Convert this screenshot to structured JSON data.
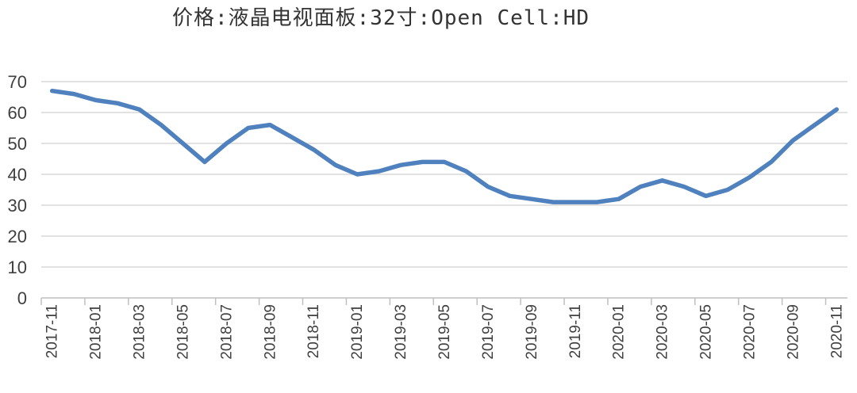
{
  "chart_data": {
    "type": "line",
    "title": "价格:液晶电视面板:32寸:Open Cell:HD",
    "xlabel": "",
    "ylabel": "",
    "ylim": [
      0,
      70
    ],
    "yticks": [
      0,
      10,
      20,
      30,
      40,
      50,
      60,
      70
    ],
    "grid": "horizontal",
    "legend": "none",
    "colors": {
      "line": "#4e81bd",
      "grid": "#d9d9d9",
      "axis": "#bfbfbf"
    },
    "x": [
      "2017-11",
      "2017-12",
      "2018-01",
      "2018-02",
      "2018-03",
      "2018-04",
      "2018-05",
      "2018-06",
      "2018-07",
      "2018-08",
      "2018-09",
      "2018-10",
      "2018-11",
      "2018-12",
      "2019-01",
      "2019-02",
      "2019-03",
      "2019-04",
      "2019-05",
      "2019-06",
      "2019-07",
      "2019-08",
      "2019-09",
      "2019-10",
      "2019-11",
      "2019-12",
      "2020-01",
      "2020-02",
      "2020-03",
      "2020-04",
      "2020-05",
      "2020-06",
      "2020-07",
      "2020-08",
      "2020-09",
      "2020-10",
      "2020-11"
    ],
    "xtick_labels": [
      "2017-11",
      "2018-01",
      "2018-03",
      "2018-05",
      "2018-07",
      "2018-09",
      "2018-11",
      "2019-01",
      "2019-03",
      "2019-05",
      "2019-07",
      "2019-09",
      "2019-11",
      "2020-01",
      "2020-03",
      "2020-05",
      "2020-07",
      "2020-09",
      "2020-11"
    ],
    "series": [
      {
        "values": [
          67,
          66,
          64,
          63,
          61,
          56,
          50,
          44,
          50,
          55,
          56,
          52,
          48,
          43,
          40,
          41,
          43,
          44,
          44,
          41,
          36,
          33,
          32,
          31,
          31,
          31,
          32,
          36,
          38,
          36,
          33,
          35,
          39,
          44,
          51,
          56,
          61
        ]
      }
    ]
  }
}
